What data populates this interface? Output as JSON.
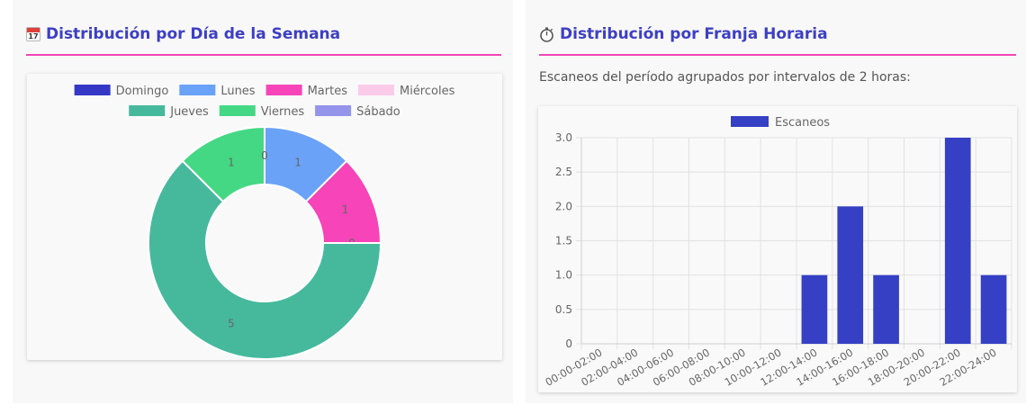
{
  "left": {
    "title": "Distribución por Día de la Semana",
    "title_icon": "calendar-icon",
    "icon_text": "17"
  },
  "right": {
    "title": "Distribución por Franja Horaria",
    "title_icon": "stopwatch-icon",
    "subtitle": "Escaneos del período agrupados por intervalos de 2 horas:"
  },
  "chart_data": [
    {
      "type": "pie",
      "variant": "doughnut",
      "labels": [
        "Domingo",
        "Lunes",
        "Martes",
        "Miércoles",
        "Jueves",
        "Viernes",
        "Sábado"
      ],
      "values": [
        0,
        1,
        1,
        0,
        5,
        1,
        0
      ],
      "colors": [
        "#3538c4",
        "#6aa2f8",
        "#f744b8",
        "#fdcbea",
        "#46b99d",
        "#45d884",
        "#9494ea"
      ],
      "legend": "top"
    },
    {
      "type": "bar",
      "categories": [
        "00:00-02:00",
        "02:00-04:00",
        "04:00-06:00",
        "06:00-08:00",
        "08:00-10:00",
        "10:00-12:00",
        "12:00-14:00",
        "14:00-16:00",
        "16:00-18:00",
        "18:00-20:00",
        "20:00-22:00",
        "22:00-24:00"
      ],
      "series": [
        {
          "name": "Escaneos",
          "values": [
            0,
            0,
            0,
            0,
            0,
            0,
            1,
            2,
            1,
            0,
            3,
            1
          ],
          "color": "#3540c4"
        }
      ],
      "ylim": [
        0,
        3
      ],
      "yticks": [
        "0",
        "0.5",
        "1.0",
        "1.5",
        "2.0",
        "2.5",
        "3.0"
      ],
      "grid": true,
      "legend": "top"
    }
  ]
}
